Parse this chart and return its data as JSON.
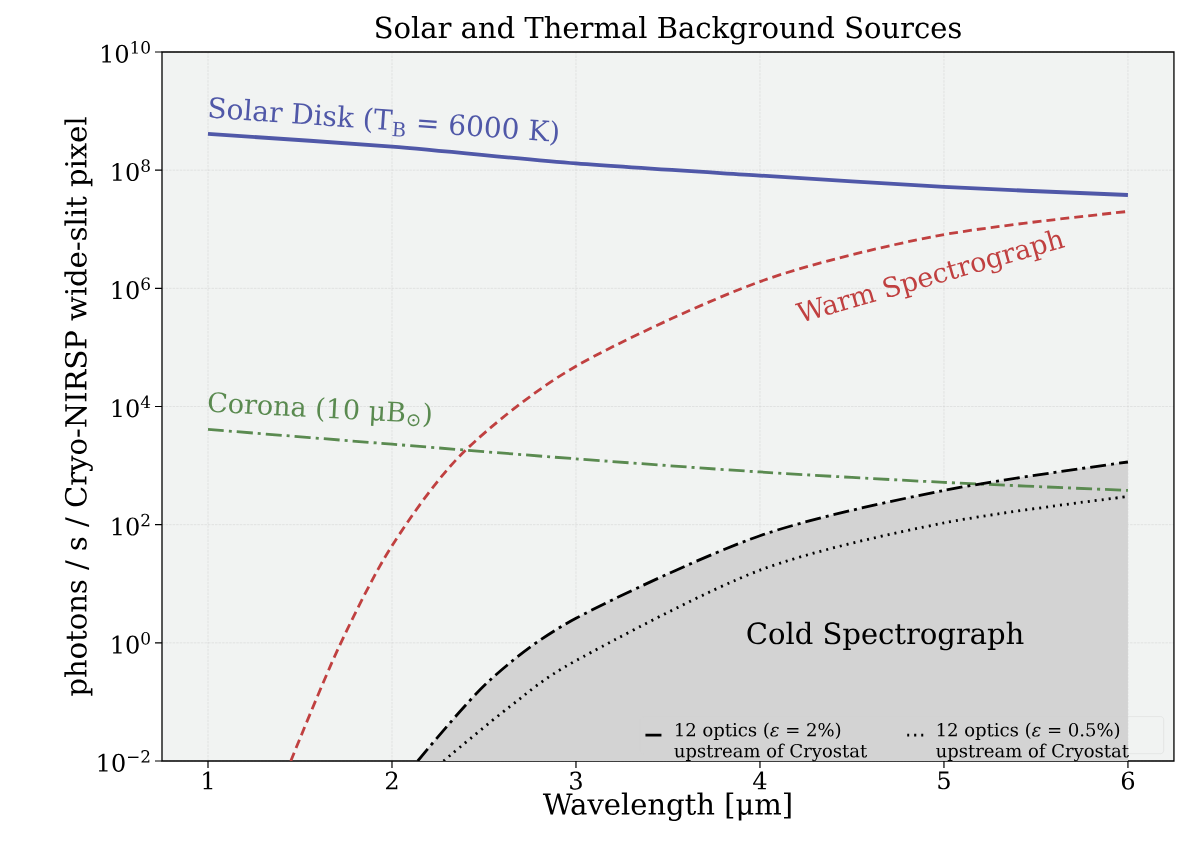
{
  "chart_data": {
    "type": "line",
    "title": "Solar and Thermal Background Sources",
    "xlabel": "Wavelength [μm]",
    "ylabel": "photons / s / Cryo-NIRSP wide-slit pixel",
    "log": "y",
    "grid": true,
    "legend": "bottom right",
    "marker": "none",
    "xlim": [
      0.75,
      6.25
    ],
    "xticks": [
      1,
      2,
      3,
      4,
      5,
      6
    ],
    "ylim": [
      0.01,
      10000000000.0
    ],
    "yticks": [
      {
        "value": 0.01,
        "label": "10$^{−2}$"
      },
      {
        "value": 1,
        "label": "10$^{0}$"
      },
      {
        "value": 100,
        "label": "10$^{2}$"
      },
      {
        "value": 10000,
        "label": "10$^{4}$"
      },
      {
        "value": 1000000,
        "label": "10$^{6}$"
      },
      {
        "value": 100000000,
        "label": "10$^{8}$"
      },
      {
        "value": 10000000000,
        "label": "10$^{10}$"
      }
    ],
    "series": [
      {
        "color": "#5058a8",
        "line_style": "solid",
        "x": [
          1,
          2,
          3,
          4,
          5,
          6
        ],
        "values": [
          410000000.0,
          250000000.0,
          130000000.0,
          81000000.0,
          52000000.0,
          38000000.0
        ]
      },
      {
        "color": "#c04040",
        "line_style": "dashed",
        "x": [
          1.45,
          1.71,
          2,
          2.39,
          3,
          4,
          4.97,
          6
        ],
        "values": [
          0.01,
          0.83,
          44,
          1700,
          48000,
          1300000.0,
          7800000.0,
          20000000.0
        ]
      },
      {
        "color": "#5a8a50",
        "line_style": "dashdot",
        "x": [
          1,
          2,
          3,
          4,
          5,
          6
        ],
        "values": [
          4100,
          2300,
          1300,
          780,
          520,
          380
        ]
      },
      {
        "type": "area",
        "name": "12 optics (*ε* = 2%) upstream of Cryostat",
        "color": "#000000",
        "line_style": "dashdot",
        "x": [
          2.14,
          2.53,
          3,
          4,
          5,
          6
        ],
        "values": [
          0.01,
          0.23,
          2.6,
          65,
          380,
          1150
        ]
      },
      {
        "name": "12 optics (*ε* = 0.5%) upstream of Cryostat",
        "color": "#000000",
        "line_style": "dotted",
        "x": [
          2.28,
          2.64,
          3,
          4,
          5,
          6
        ],
        "values": [
          0.01,
          0.083,
          0.5,
          17,
          107,
          300
        ]
      }
    ],
    "annotations": [
      "Solar Disk (T$_{B}$ = 6000 K)",
      "Warm Spectrograph",
      "Corona (10 μB$_{⊙}$)",
      "Cold Spectrograph"
    ]
  }
}
